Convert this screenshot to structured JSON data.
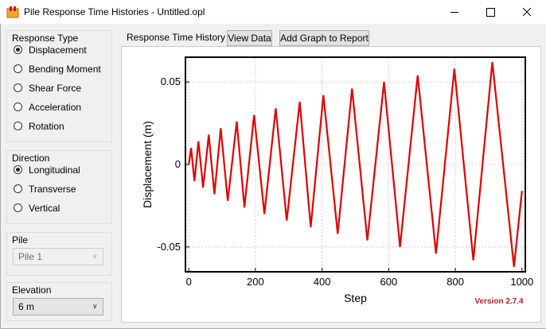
{
  "window": {
    "title": "Pile Response Time Histories - Untitled.opl"
  },
  "response_type": {
    "label": "Response Type",
    "options": [
      "Displacement",
      "Bending Moment",
      "Shear Force",
      "Acceleration",
      "Rotation"
    ],
    "selected": 0
  },
  "direction": {
    "label": "Direction",
    "options": [
      "Longitudinal",
      "Transverse",
      "Vertical"
    ],
    "selected": 0
  },
  "pile": {
    "label": "Pile",
    "value": "Pile 1",
    "enabled": false
  },
  "elevation": {
    "label": "Elevation",
    "value": "6 m",
    "enabled": true
  },
  "toolbar": {
    "label": "Response Time History",
    "buttons": [
      "View Data",
      "Add Graph to Report"
    ]
  },
  "chart_data": {
    "type": "line",
    "x_label": "Step",
    "y_label": "Displacement (m)",
    "annotation": "Version 2.7.4",
    "x": [
      0,
      7,
      17,
      29,
      43,
      60,
      77,
      96,
      117,
      144,
      167,
      196,
      227,
      261,
      294,
      333,
      366,
      404,
      447,
      490,
      536,
      586,
      634,
      687,
      742,
      797,
      854,
      911,
      976,
      1000
    ],
    "values": [
      0,
      0.01,
      -0.01,
      0.014,
      -0.014,
      0.018,
      -0.018,
      0.022,
      -0.022,
      0.026,
      -0.026,
      0.03,
      -0.03,
      0.034,
      -0.034,
      0.038,
      -0.038,
      0.042,
      -0.042,
      0.046,
      -0.046,
      0.05,
      -0.05,
      0.054,
      -0.054,
      0.058,
      -0.058,
      0.062,
      -0.062,
      -0.016
    ],
    "color": "#e00000",
    "xlim": [
      -10,
      1010
    ],
    "xticks": [
      0,
      200,
      400,
      600,
      800,
      1000
    ],
    "ylim": [
      -0.065,
      0.065
    ],
    "yticks": [
      -0.05,
      0,
      0.05
    ],
    "grid": true
  }
}
